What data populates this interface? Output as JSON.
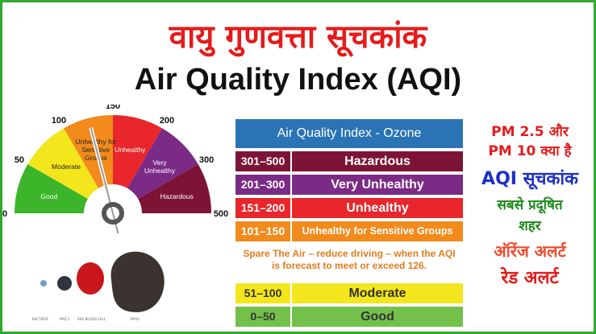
{
  "title_hindi": "वायु गुणवत्ता सूचकांक",
  "title_english": "Air Quality Index (AQI)",
  "gauge": {
    "ticks": [
      "0",
      "50",
      "100",
      "150",
      "200",
      "300",
      "500"
    ],
    "segments": [
      {
        "label": "Good",
        "color": "#3cb52a"
      },
      {
        "label": "Moderate",
        "color": "#f4e61c"
      },
      {
        "label_lines": [
          "Unhealthy for",
          "Sensitive",
          "Groups"
        ],
        "color": "#f28a1c"
      },
      {
        "label": "Unhealthy",
        "color": "#e8262b"
      },
      {
        "label_lines": [
          "Very",
          "Unhealthy"
        ],
        "color": "#7b2a86"
      },
      {
        "label": "Hazardous",
        "color": "#7d1436"
      }
    ],
    "needle_value": 126
  },
  "particles": {
    "labels": [
      "BACTERIA",
      "PM2.5",
      "RED BLOOD CELL",
      "",
      "PM10"
    ]
  },
  "table": {
    "header": "Air Quality Index - Ozone",
    "rows": [
      {
        "range": "301–500",
        "category": "Hazardous",
        "color": "#7d1436"
      },
      {
        "range": "201–300",
        "category": "Very Unhealthy",
        "color": "#7b2a86"
      },
      {
        "range": "151–200",
        "category": "Unhealthy",
        "color": "#e8262b"
      },
      {
        "range": "101–150",
        "category": "Unhealthy for Sensitive Groups",
        "color": "#f28a1c"
      }
    ],
    "note_line1": "Spare The Air – reduce driving – when the AQI",
    "note_line2": "is forecast to meet or exceed 126.",
    "rows_low": [
      {
        "range": "51–100",
        "category": "Moderate",
        "color": "#f4e61c"
      },
      {
        "range": "0–50",
        "category": "Good",
        "color": "#73c14b"
      }
    ]
  },
  "side": {
    "pm_line1": "PM 2.5 और",
    "pm_line2": "PM 10 क्या है",
    "aqi_label": "AQI सूचकांक",
    "polluted_line1": "सबसे प्रदूषित",
    "polluted_line2": "शहर",
    "orange_alert": "ऑरेंज अलर्ट",
    "red_alert": "रेड अलर्ट"
  }
}
